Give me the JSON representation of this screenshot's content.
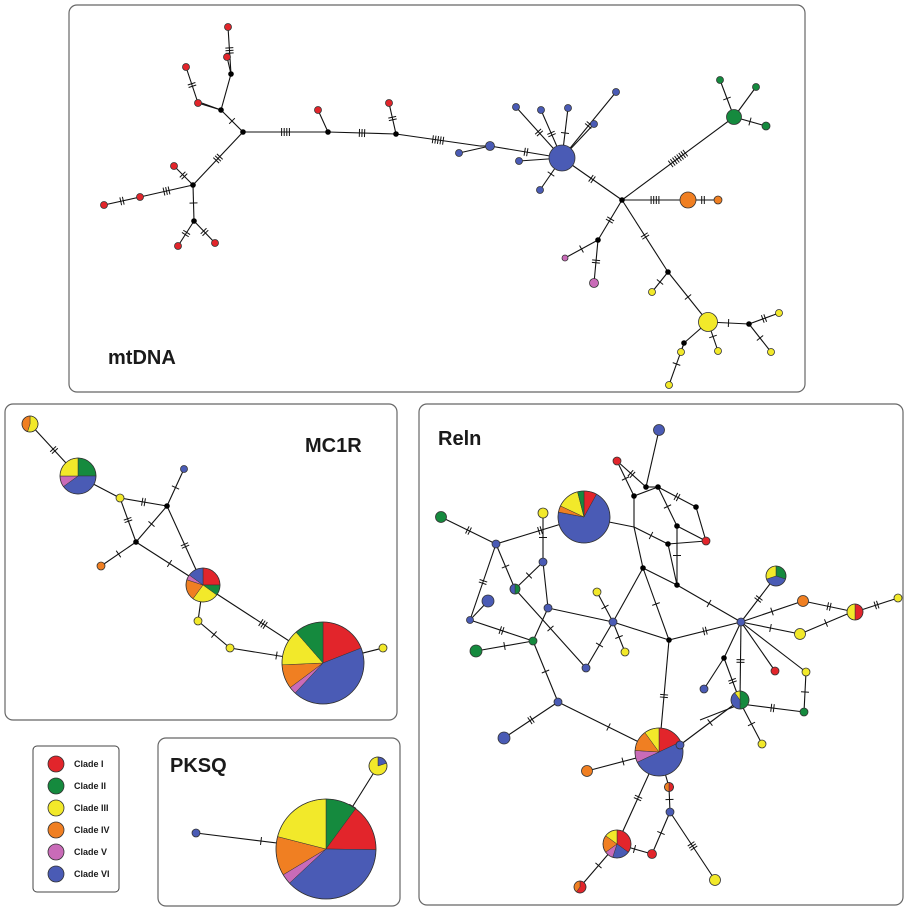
{
  "colors": {
    "clade_1": "#e2252b",
    "clade_2": "#158a3e",
    "clade_3": "#f2e92a",
    "clade_4": "#f07f22",
    "clade_5": "#c96bb8",
    "clade_6": "#4a5bb5",
    "node": "#000000",
    "edge": "#111111",
    "panel_border": "#666666"
  },
  "panels": {
    "mtdna": "mtDNA",
    "mc1r": "MC1R",
    "reln": "Reln",
    "pksq": "PKSQ"
  },
  "legend": {
    "items": [
      {
        "label": "Clade I",
        "color": "clade_1"
      },
      {
        "label": "Clade II",
        "color": "clade_2"
      },
      {
        "label": "Clade III",
        "color": "clade_3"
      },
      {
        "label": "Clade IV",
        "color": "clade_4"
      },
      {
        "label": "Clade V",
        "color": "clade_5"
      },
      {
        "label": "Clade VI",
        "color": "clade_6"
      }
    ]
  }
}
